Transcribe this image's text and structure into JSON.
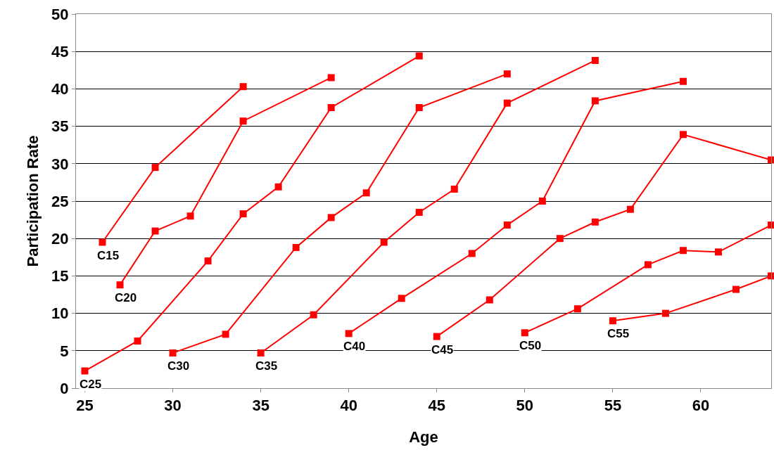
{
  "chart_data": {
    "type": "line",
    "xlabel": "Age",
    "ylabel": "Participation Rate",
    "xlim": [
      24.5,
      64
    ],
    "xticks": [
      25,
      30,
      35,
      40,
      45,
      50,
      55,
      60
    ],
    "ylim": [
      0,
      50
    ],
    "yticks": [
      0,
      5,
      10,
      15,
      20,
      25,
      30,
      35,
      40,
      45,
      50
    ],
    "grid": "y",
    "legend": false,
    "marker": "square",
    "line_style": "solid",
    "series": [
      {
        "name": "C15",
        "color": "#ff0000",
        "x": [
          26,
          29,
          34
        ],
        "values": [
          19.5,
          29.5,
          40.3
        ]
      },
      {
        "name": "C20",
        "color": "#ff0000",
        "x": [
          27,
          29,
          31,
          34,
          39
        ],
        "values": [
          13.8,
          21,
          23,
          35.7,
          41.5
        ]
      },
      {
        "name": "C25",
        "color": "#ff0000",
        "x": [
          25,
          28,
          32,
          34,
          36,
          39,
          44
        ],
        "values": [
          2.3,
          6.3,
          17,
          23.3,
          26.9,
          37.5,
          44.4
        ]
      },
      {
        "name": "C30",
        "color": "#ff0000",
        "x": [
          30,
          33,
          37,
          39,
          41,
          44,
          49
        ],
        "values": [
          4.7,
          7.2,
          18.8,
          22.8,
          26.1,
          37.5,
          42
        ]
      },
      {
        "name": "C35",
        "color": "#ff0000",
        "x": [
          35,
          38,
          42,
          44,
          46,
          49,
          54
        ],
        "values": [
          4.7,
          9.8,
          19.5,
          23.5,
          26.6,
          38.1,
          43.8
        ]
      },
      {
        "name": "C40",
        "color": "#ff0000",
        "x": [
          40,
          43,
          47,
          49,
          51,
          54,
          59
        ],
        "values": [
          7.3,
          12,
          18,
          21.8,
          25,
          38.4,
          41
        ]
      },
      {
        "name": "C45",
        "color": "#ff0000",
        "x": [
          45,
          48,
          52,
          54,
          56,
          59,
          64
        ],
        "values": [
          6.9,
          11.8,
          20,
          22.2,
          23.9,
          33.9,
          30.5
        ]
      },
      {
        "name": "C50",
        "color": "#ff0000",
        "x": [
          50,
          53,
          57,
          59,
          61,
          64
        ],
        "values": [
          7.4,
          10.6,
          16.5,
          18.4,
          18.2,
          21.8
        ]
      },
      {
        "name": "C55",
        "color": "#ff0000",
        "x": [
          55,
          58,
          62,
          64
        ],
        "values": [
          9,
          10,
          13.2,
          15
        ]
      }
    ]
  }
}
